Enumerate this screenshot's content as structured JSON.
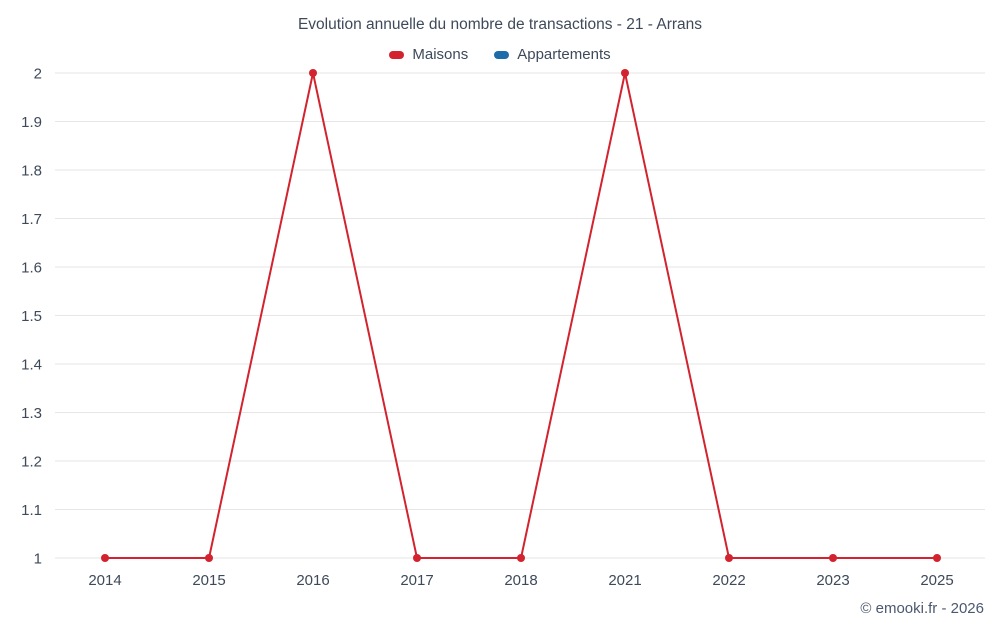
{
  "title": "Evolution annuelle du nombre de transactions - 21 - Arrans",
  "footer": "© emooki.fr - 2026",
  "legend": [
    {
      "label": "Maisons",
      "color": "#d2232e"
    },
    {
      "label": "Appartements",
      "color": "#1b6ca8"
    }
  ],
  "chart_data": {
    "type": "line",
    "title": "Evolution annuelle du nombre de transactions - 21 - Arrans",
    "categories": [
      "2014",
      "2015",
      "2016",
      "2017",
      "2018",
      "2021",
      "2022",
      "2023",
      "2025"
    ],
    "series": [
      {
        "name": "Maisons",
        "color": "#d2232e",
        "values": [
          1,
          1,
          2,
          1,
          1,
          2,
          1,
          1,
          1
        ]
      },
      {
        "name": "Appartements",
        "color": "#1b6ca8",
        "values": []
      }
    ],
    "xlabel": "",
    "ylabel": "",
    "ylim": [
      1,
      2
    ],
    "ytick_step": 0.1,
    "grid": "horizontal",
    "grid_color": "#e6e6e6",
    "legend_position": "top",
    "marker_radius": 4,
    "line_width": 2
  }
}
